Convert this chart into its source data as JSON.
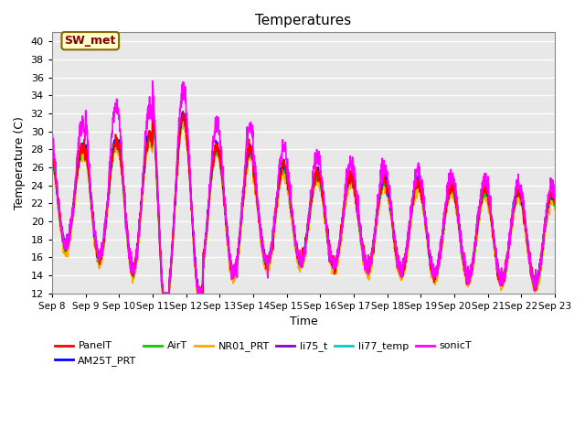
{
  "title": "Temperatures",
  "xlabel": "Time",
  "ylabel": "Temperature (C)",
  "ylim": [
    12,
    41
  ],
  "yticks": [
    12,
    14,
    16,
    18,
    20,
    22,
    24,
    26,
    28,
    30,
    32,
    34,
    36,
    38,
    40
  ],
  "x_labels": [
    "Sep 8",
    "Sep 9",
    "Sep 10",
    "Sep 11",
    "Sep 12",
    "Sep 13",
    "Sep 14",
    "Sep 15",
    "Sep 16",
    "Sep 17",
    "Sep 18",
    "Sep 19",
    "Sep 20",
    "Sep 21",
    "Sep 22",
    "Sep 23"
  ],
  "series": {
    "PanelT": {
      "color": "#ff0000",
      "lw": 1.2
    },
    "AM25T_PRT": {
      "color": "#0000ff",
      "lw": 1.2
    },
    "AirT": {
      "color": "#00cc00",
      "lw": 1.2
    },
    "NR01_PRT": {
      "color": "#ffaa00",
      "lw": 1.2
    },
    "li75_t": {
      "color": "#8800cc",
      "lw": 1.2
    },
    "li77_temp": {
      "color": "#00cccc",
      "lw": 1.2
    },
    "sonicT": {
      "color": "#ff00ff",
      "lw": 1.2
    }
  },
  "plot_bg": "#e8e8e8",
  "grid_color": "#ffffff",
  "annotation_text": "SW_met",
  "annotation_bg": "#ffffcc",
  "annotation_edge": "#886600",
  "annotation_text_color": "#880000",
  "legend_order": [
    "PanelT",
    "AM25T_PRT",
    "AirT",
    "NR01_PRT",
    "li75_t",
    "li77_temp",
    "sonicT"
  ]
}
